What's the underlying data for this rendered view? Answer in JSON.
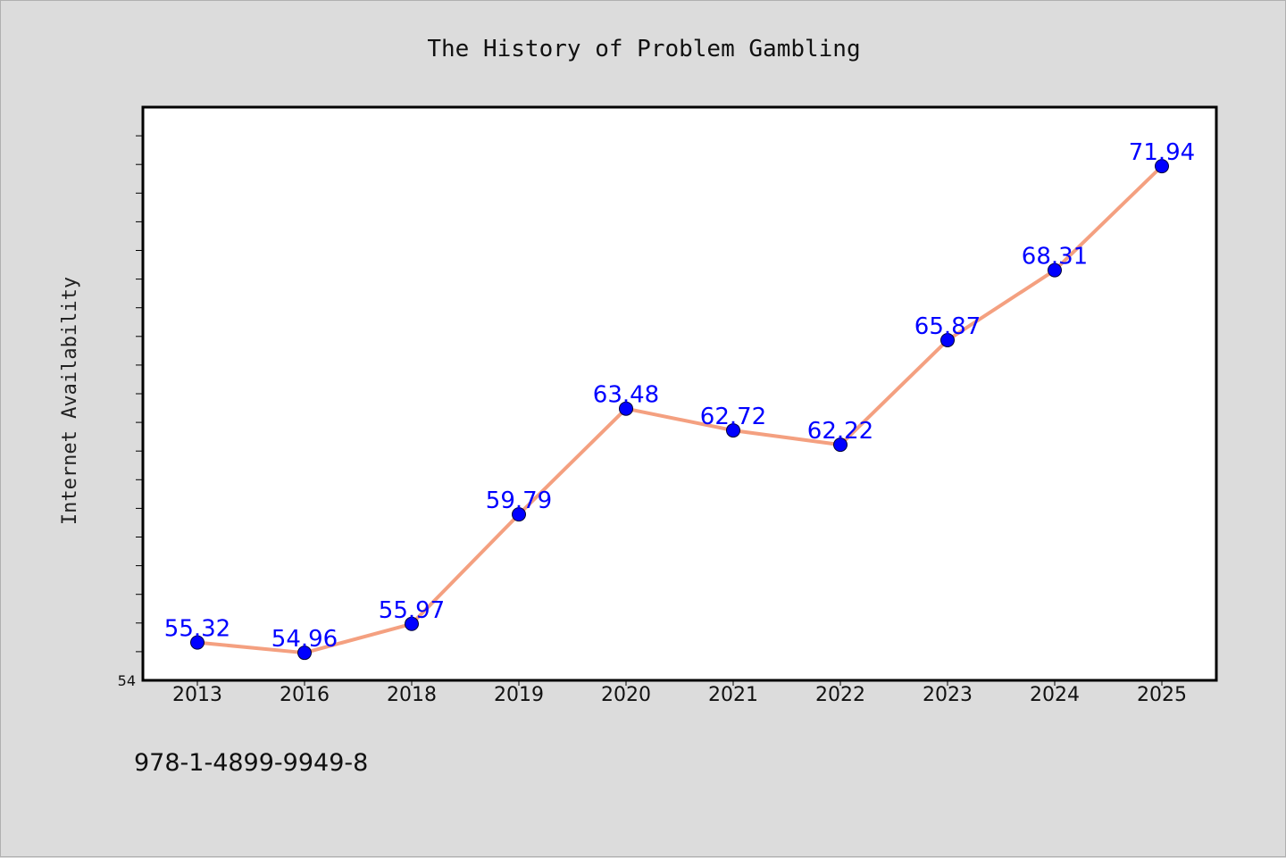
{
  "chart_data": {
    "type": "line",
    "title": "The History of Problem Gambling",
    "xlabel": "",
    "ylabel": "Internet Availability",
    "categories": [
      "2013",
      "2016",
      "2018",
      "2019",
      "2020",
      "2021",
      "2022",
      "2023",
      "2024",
      "2025"
    ],
    "series": [
      {
        "values": [
          55.32,
          54.96,
          55.97,
          59.79,
          63.48,
          62.72,
          62.22,
          65.87,
          68.31,
          71.94
        ],
        "labels": [
          "55.32",
          "54.96",
          "55.97",
          "59.79",
          "63.48",
          "62.72",
          "62.22",
          "65.87",
          "68.31",
          "71.94"
        ],
        "line_color": "#f4a080",
        "marker_color": "#0000ff"
      }
    ],
    "ylim": [
      54,
      74
    ],
    "y_tick_labels": [
      {
        "value": 54,
        "label": "54"
      }
    ],
    "y_minor_step": 1,
    "grid": false,
    "legend": "none"
  },
  "footer": {
    "isbn": "978-1-4899-9949-8"
  }
}
